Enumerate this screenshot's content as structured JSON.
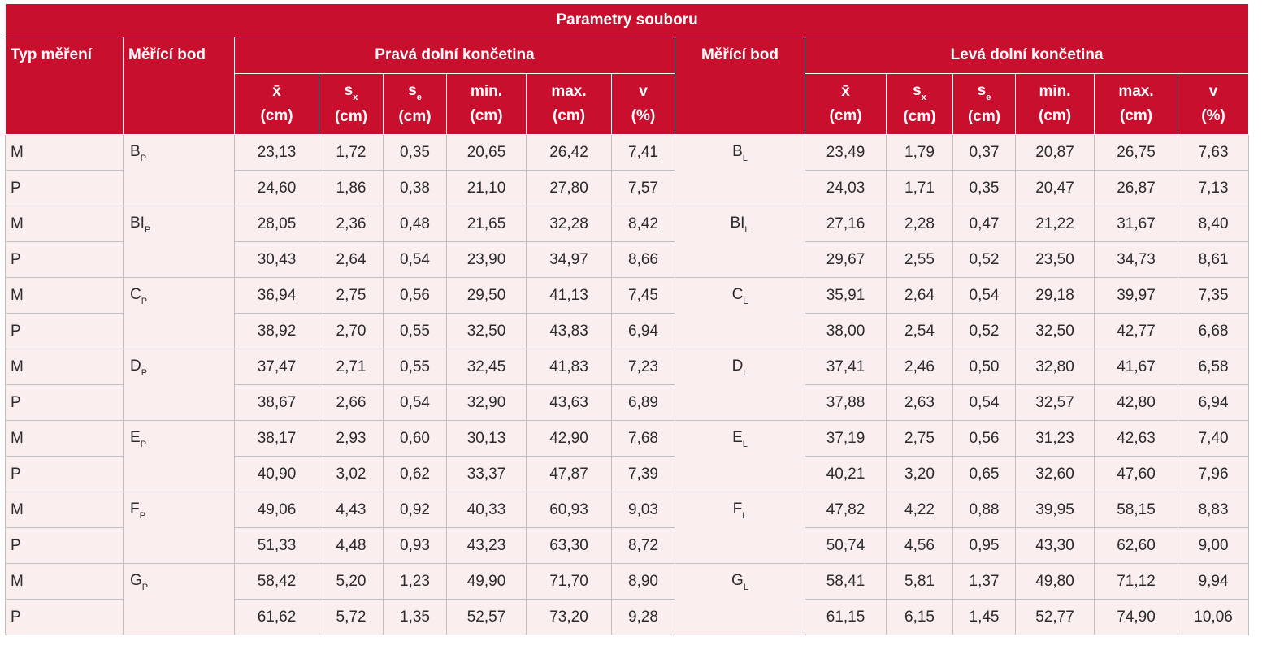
{
  "title": "Parametry souboru",
  "headers": {
    "typ": "Typ měření",
    "bod_left": "Měřící bod",
    "prava": "Pravá dolní končetina",
    "bod_right": "Měřící bod",
    "leva": "Levá dolní končetina",
    "stats": [
      {
        "sym": "x̄",
        "unit": "(cm)"
      },
      {
        "sym": "s",
        "sub": "x",
        "unit": "(cm)"
      },
      {
        "sym": "s",
        "sub": "e",
        "unit": "(cm)"
      },
      {
        "sym": "min.",
        "unit": "(cm)"
      },
      {
        "sym": "max.",
        "unit": "(cm)"
      },
      {
        "sym": "v",
        "unit": "(%)"
      }
    ]
  },
  "groups": [
    {
      "p_base": "B",
      "p_sub": "P",
      "l_base": "B",
      "l_sub": "L",
      "rows": [
        {
          "typ": "M",
          "p": [
            "23,13",
            "1,72",
            "0,35",
            "20,65",
            "26,42",
            "7,41"
          ],
          "l": [
            "23,49",
            "1,79",
            "0,37",
            "20,87",
            "26,75",
            "7,63"
          ]
        },
        {
          "typ": "P",
          "p": [
            "24,60",
            "1,86",
            "0,38",
            "21,10",
            "27,80",
            "7,57"
          ],
          "l": [
            "24,03",
            "1,71",
            "0,35",
            "20,47",
            "26,87",
            "7,13"
          ]
        }
      ]
    },
    {
      "p_base": "BI",
      "p_sub": "P",
      "l_base": "BI",
      "l_sub": "L",
      "rows": [
        {
          "typ": "M",
          "p": [
            "28,05",
            "2,36",
            "0,48",
            "21,65",
            "32,28",
            "8,42"
          ],
          "l": [
            "27,16",
            "2,28",
            "0,47",
            "21,22",
            "31,67",
            "8,40"
          ]
        },
        {
          "typ": "P",
          "p": [
            "30,43",
            "2,64",
            "0,54",
            "23,90",
            "34,97",
            "8,66"
          ],
          "l": [
            "29,67",
            "2,55",
            "0,52",
            "23,50",
            "34,73",
            "8,61"
          ]
        }
      ]
    },
    {
      "p_base": "C",
      "p_sub": "P",
      "l_base": "C",
      "l_sub": "L",
      "rows": [
        {
          "typ": "M",
          "p": [
            "36,94",
            "2,75",
            "0,56",
            "29,50",
            "41,13",
            "7,45"
          ],
          "l": [
            "35,91",
            "2,64",
            "0,54",
            "29,18",
            "39,97",
            "7,35"
          ]
        },
        {
          "typ": "P",
          "p": [
            "38,92",
            "2,70",
            "0,55",
            "32,50",
            "43,83",
            "6,94"
          ],
          "l": [
            "38,00",
            "2,54",
            "0,52",
            "32,50",
            "42,77",
            "6,68"
          ]
        }
      ]
    },
    {
      "p_base": "D",
      "p_sub": "P",
      "l_base": "D",
      "l_sub": "L",
      "rows": [
        {
          "typ": "M",
          "p": [
            "37,47",
            "2,71",
            "0,55",
            "32,45",
            "41,83",
            "7,23"
          ],
          "l": [
            "37,41",
            "2,46",
            "0,50",
            "32,80",
            "41,67",
            "6,58"
          ]
        },
        {
          "typ": "P",
          "p": [
            "38,67",
            "2,66",
            "0,54",
            "32,90",
            "43,63",
            "6,89"
          ],
          "l": [
            "37,88",
            "2,63",
            "0,54",
            "32,57",
            "42,80",
            "6,94"
          ]
        }
      ]
    },
    {
      "p_base": "E",
      "p_sub": "P",
      "l_base": "E",
      "l_sub": "L",
      "rows": [
        {
          "typ": "M",
          "p": [
            "38,17",
            "2,93",
            "0,60",
            "30,13",
            "42,90",
            "7,68"
          ],
          "l": [
            "37,19",
            "2,75",
            "0,56",
            "31,23",
            "42,63",
            "7,40"
          ]
        },
        {
          "typ": "P",
          "p": [
            "40,90",
            "3,02",
            "0,62",
            "33,37",
            "47,87",
            "7,39"
          ],
          "l": [
            "40,21",
            "3,20",
            "0,65",
            "32,60",
            "47,60",
            "7,96"
          ]
        }
      ]
    },
    {
      "p_base": "F",
      "p_sub": "P",
      "l_base": "F",
      "l_sub": "L",
      "rows": [
        {
          "typ": "M",
          "p": [
            "49,06",
            "4,43",
            "0,92",
            "40,33",
            "60,93",
            "9,03"
          ],
          "l": [
            "47,82",
            "4,22",
            "0,88",
            "39,95",
            "58,15",
            "8,83"
          ]
        },
        {
          "typ": "P",
          "p": [
            "51,33",
            "4,48",
            "0,93",
            "43,23",
            "63,30",
            "8,72"
          ],
          "l": [
            "50,74",
            "4,56",
            "0,95",
            "43,30",
            "62,60",
            "9,00"
          ]
        }
      ]
    },
    {
      "p_base": "G",
      "p_sub": "P",
      "l_base": "G",
      "l_sub": "L",
      "rows": [
        {
          "typ": "M",
          "p": [
            "58,42",
            "5,20",
            "1,23",
            "49,90",
            "71,70",
            "8,90"
          ],
          "l": [
            "58,41",
            "5,81",
            "1,37",
            "49,80",
            "71,12",
            "9,94"
          ]
        },
        {
          "typ": "P",
          "p": [
            "61,62",
            "5,72",
            "1,35",
            "52,57",
            "73,20",
            "9,28"
          ],
          "l": [
            "61,15",
            "6,15",
            "1,45",
            "52,77",
            "74,90",
            "10,06"
          ]
        }
      ]
    }
  ]
}
